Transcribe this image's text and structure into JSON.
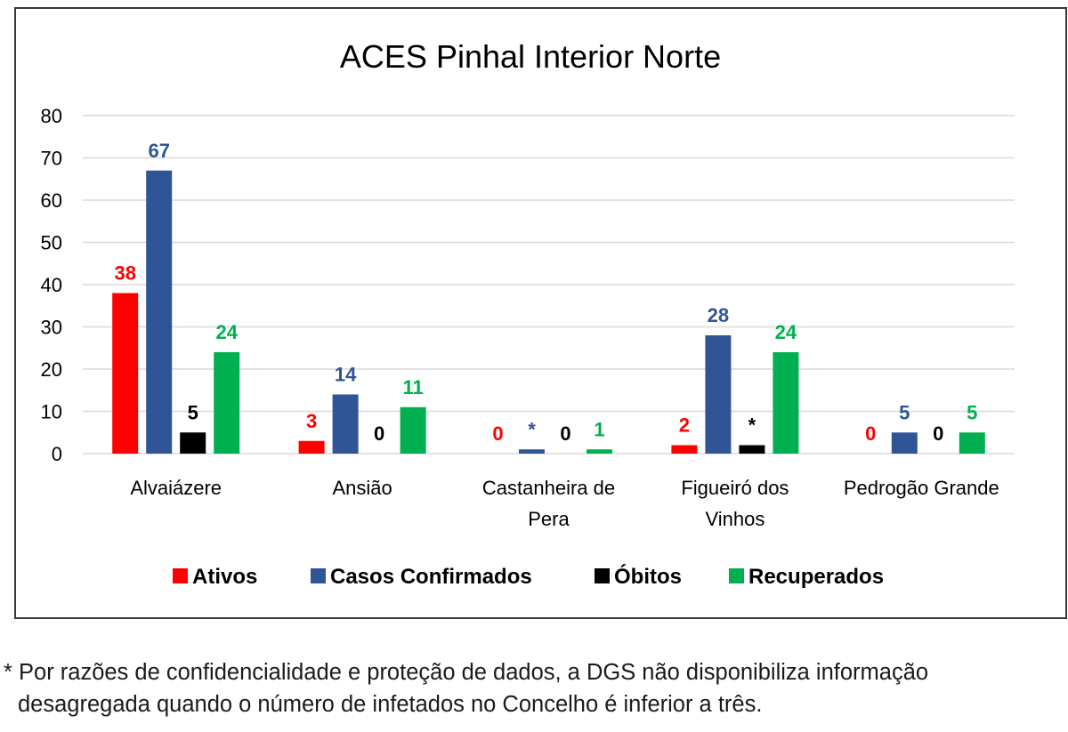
{
  "colors": {
    "Ativos": "#ff0000",
    "Casos Confirmados": "#2f5597",
    "Óbitos": "#000000",
    "Recuperados": "#00b050",
    "gridline": "#d9d9d9",
    "axis_text": "#000000"
  },
  "chart_data": {
    "type": "bar",
    "title": "ACES Pinhal Interior Norte",
    "xlabel": "",
    "ylabel": "",
    "ylim": [
      0,
      80
    ],
    "yticks": [
      0,
      10,
      20,
      30,
      40,
      50,
      60,
      70,
      80
    ],
    "grid": true,
    "legend_position": "bottom",
    "categories": [
      [
        "Alvaiázere"
      ],
      [
        "Ansião"
      ],
      [
        "Castanheira de",
        "Pera"
      ],
      [
        "Figueiró dos",
        "Vinhos"
      ],
      [
        "Pedrogão Grande"
      ]
    ],
    "series": [
      {
        "name": "Ativos",
        "values": [
          38,
          3,
          0,
          2,
          0
        ],
        "labels": [
          "38",
          "3",
          "0",
          "2",
          "0"
        ]
      },
      {
        "name": "Casos Confirmados",
        "values": [
          67,
          14,
          1,
          28,
          5
        ],
        "labels": [
          "67",
          "14",
          "*",
          "28",
          "5"
        ]
      },
      {
        "name": "Óbitos",
        "values": [
          5,
          0,
          0,
          2,
          0
        ],
        "labels": [
          "5",
          "0",
          "0",
          "*",
          "0"
        ]
      },
      {
        "name": "Recuperados",
        "values": [
          24,
          11,
          1,
          24,
          5
        ],
        "labels": [
          "24",
          "11",
          "1",
          "24",
          "5"
        ]
      }
    ]
  },
  "footnote": {
    "line1": "* Por razões de confidencialidade e proteção de dados, a DGS não disponibiliza informação",
    "line2": "desagregada quando o número de infetados no Concelho é inferior a três."
  }
}
